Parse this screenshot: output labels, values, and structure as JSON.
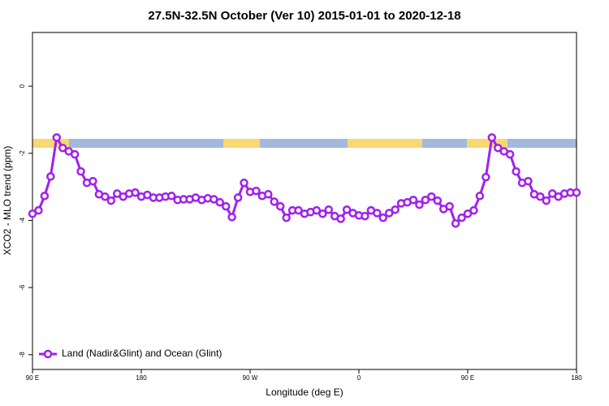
{
  "chart_data": {
    "type": "line",
    "title": "27.5N-32.5N October (Ver 10)   2015-01-01 to 2020-12-18",
    "x_label": "Longitude (deg E)",
    "y_label": "XCO2 - MLO trend (ppm)",
    "xlim": [
      90,
      540
    ],
    "ylim": [
      -8.44,
      1.6
    ],
    "xticks": [
      {
        "value": 90,
        "label": "90 E"
      },
      180,
      {
        "value": 270,
        "label": "90 W"
      },
      {
        "value": 360,
        "label": "0"
      },
      {
        "value": 450,
        "label": "90 E"
      },
      {
        "value": 540,
        "label": "180"
      }
    ],
    "yticks": [
      0,
      -2,
      -4,
      -6,
      -8
    ],
    "legend": "bottom-left",
    "x": [
      90,
      95,
      100,
      105,
      110,
      115,
      120,
      125,
      130,
      135,
      140,
      145,
      150,
      155,
      160,
      165,
      170,
      175,
      180,
      185,
      190,
      195,
      200,
      205,
      210,
      215,
      220,
      225,
      230,
      235,
      240,
      245,
      250,
      255,
      260,
      265,
      270,
      275,
      280,
      285,
      290,
      295,
      300,
      305,
      310,
      315,
      320,
      325,
      330,
      335,
      340,
      345,
      350,
      355,
      360,
      365,
      370,
      375,
      380,
      385,
      390,
      395,
      400,
      405,
      410,
      415,
      420,
      425,
      430,
      435,
      440,
      445,
      450,
      455,
      460,
      465,
      470,
      475,
      480,
      485,
      490,
      495,
      500,
      505,
      510,
      515,
      520,
      525,
      530,
      535,
      540
    ],
    "series": [
      {
        "name": "Land (Nadir&Glint) and Ocean (Glint)",
        "color": "#a020f0",
        "values": [
          -3.8,
          -3.7,
          -3.27,
          -2.69,
          -1.53,
          -1.84,
          -1.94,
          -2.03,
          -2.54,
          -2.88,
          -2.83,
          -3.22,
          -3.29,
          -3.41,
          -3.2,
          -3.29,
          -3.2,
          -3.17,
          -3.29,
          -3.24,
          -3.32,
          -3.32,
          -3.29,
          -3.27,
          -3.39,
          -3.37,
          -3.37,
          -3.32,
          -3.39,
          -3.34,
          -3.37,
          -3.46,
          -3.58,
          -3.9,
          -3.32,
          -2.88,
          -3.15,
          -3.12,
          -3.27,
          -3.22,
          -3.44,
          -3.58,
          -3.92,
          -3.7,
          -3.7,
          -3.8,
          -3.75,
          -3.7,
          -3.8,
          -3.68,
          -3.87,
          -3.95,
          -3.68,
          -3.78,
          -3.85,
          -3.87,
          -3.7,
          -3.78,
          -3.92,
          -3.78,
          -3.68,
          -3.49,
          -3.46,
          -3.39,
          -3.53,
          -3.39,
          -3.29,
          -3.41,
          -3.66,
          -3.58,
          -4.09,
          -3.92,
          -3.8,
          -3.7,
          -3.27,
          -2.71,
          -1.53,
          -1.84,
          -1.94,
          -2.03,
          -2.54,
          -2.88,
          -2.83,
          -3.22,
          -3.29,
          -3.41,
          -3.2,
          -3.29,
          -3.2,
          -3.17,
          -3.17
        ]
      }
    ]
  }
}
